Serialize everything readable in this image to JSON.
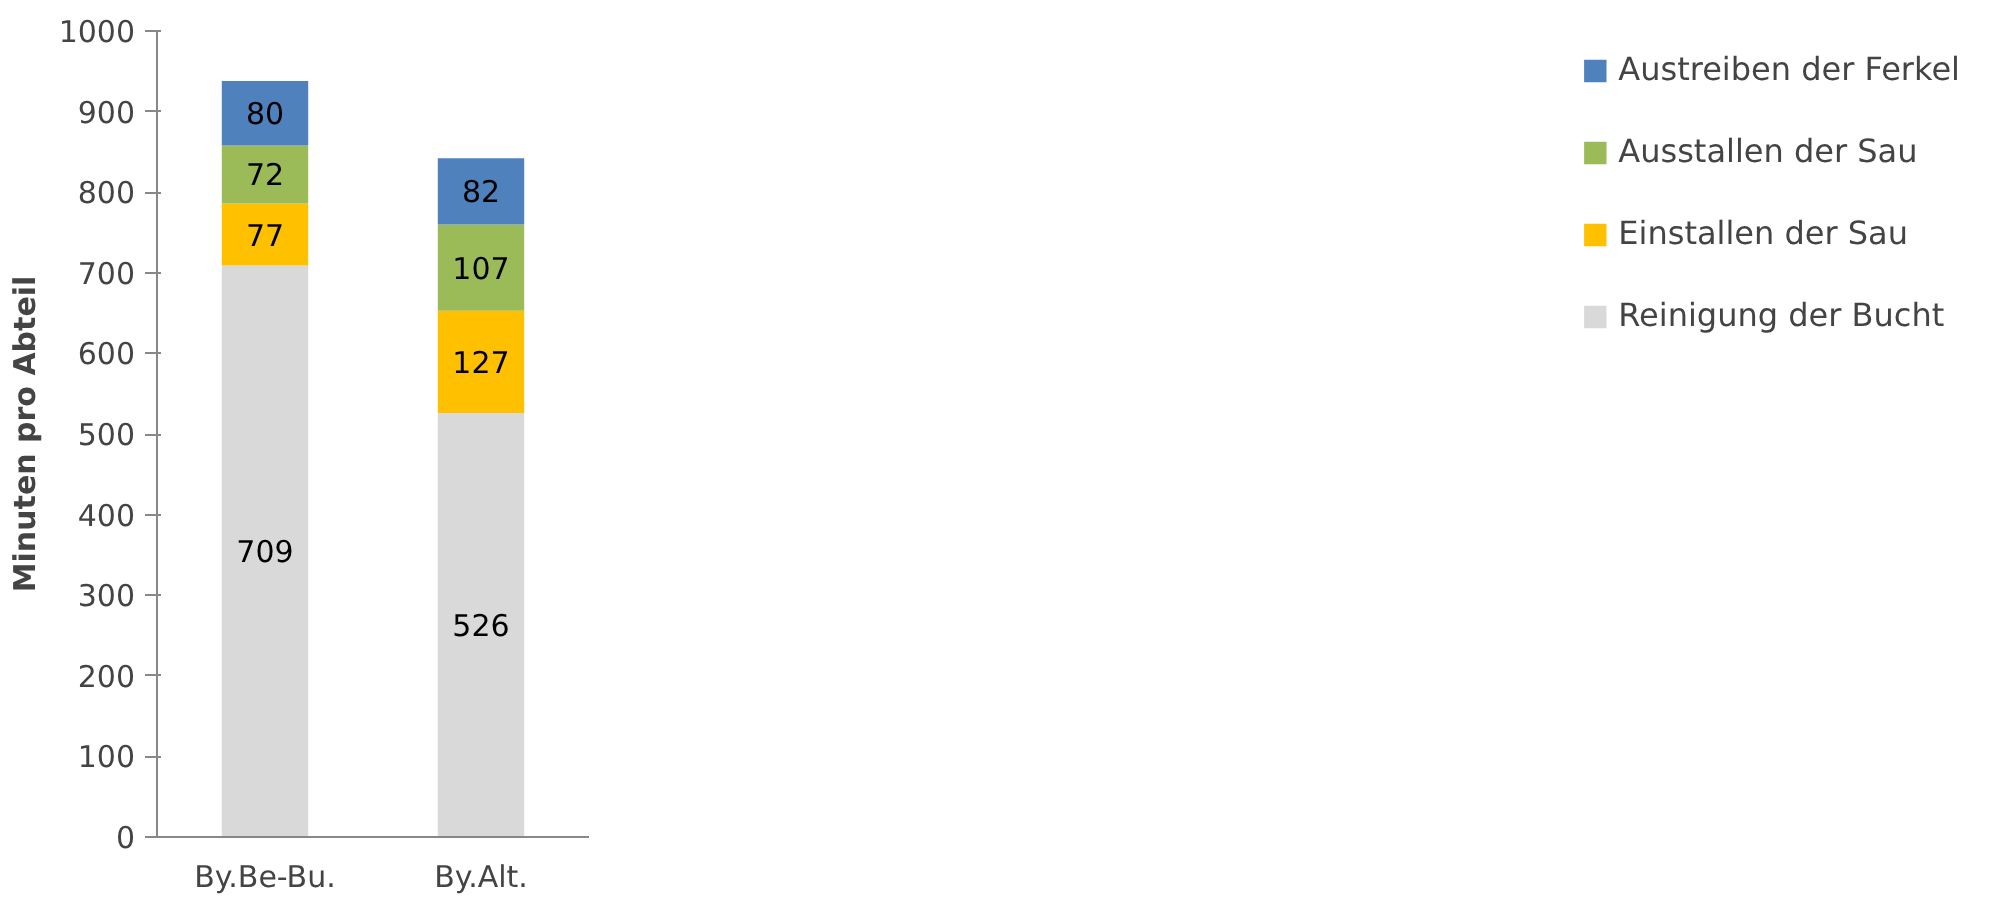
{
  "chart_data": {
    "type": "bar",
    "stacked": true,
    "ylabel": "Minuten pro Abteil",
    "categories": [
      "By.Be-Bu.",
      "By.Alt."
    ],
    "series": [
      {
        "name": "Reinigung der Bucht",
        "color": "#d9d9d9",
        "values": [
          709,
          526
        ]
      },
      {
        "name": "Einstallen der Sau",
        "color": "#ffc000",
        "values": [
          77,
          127
        ]
      },
      {
        "name": "Ausstallen der Sau",
        "color": "#9bbb59",
        "values": [
          72,
          107
        ]
      },
      {
        "name": "Austreiben der Ferkel",
        "color": "#4f81bd",
        "values": [
          80,
          82
        ]
      }
    ],
    "ylim": [
      0,
      1000
    ],
    "yticks": [
      0,
      100,
      200,
      300,
      400,
      500,
      600,
      700,
      800,
      900,
      1000
    ],
    "data_labels": true,
    "legend": "right",
    "grid": false
  }
}
